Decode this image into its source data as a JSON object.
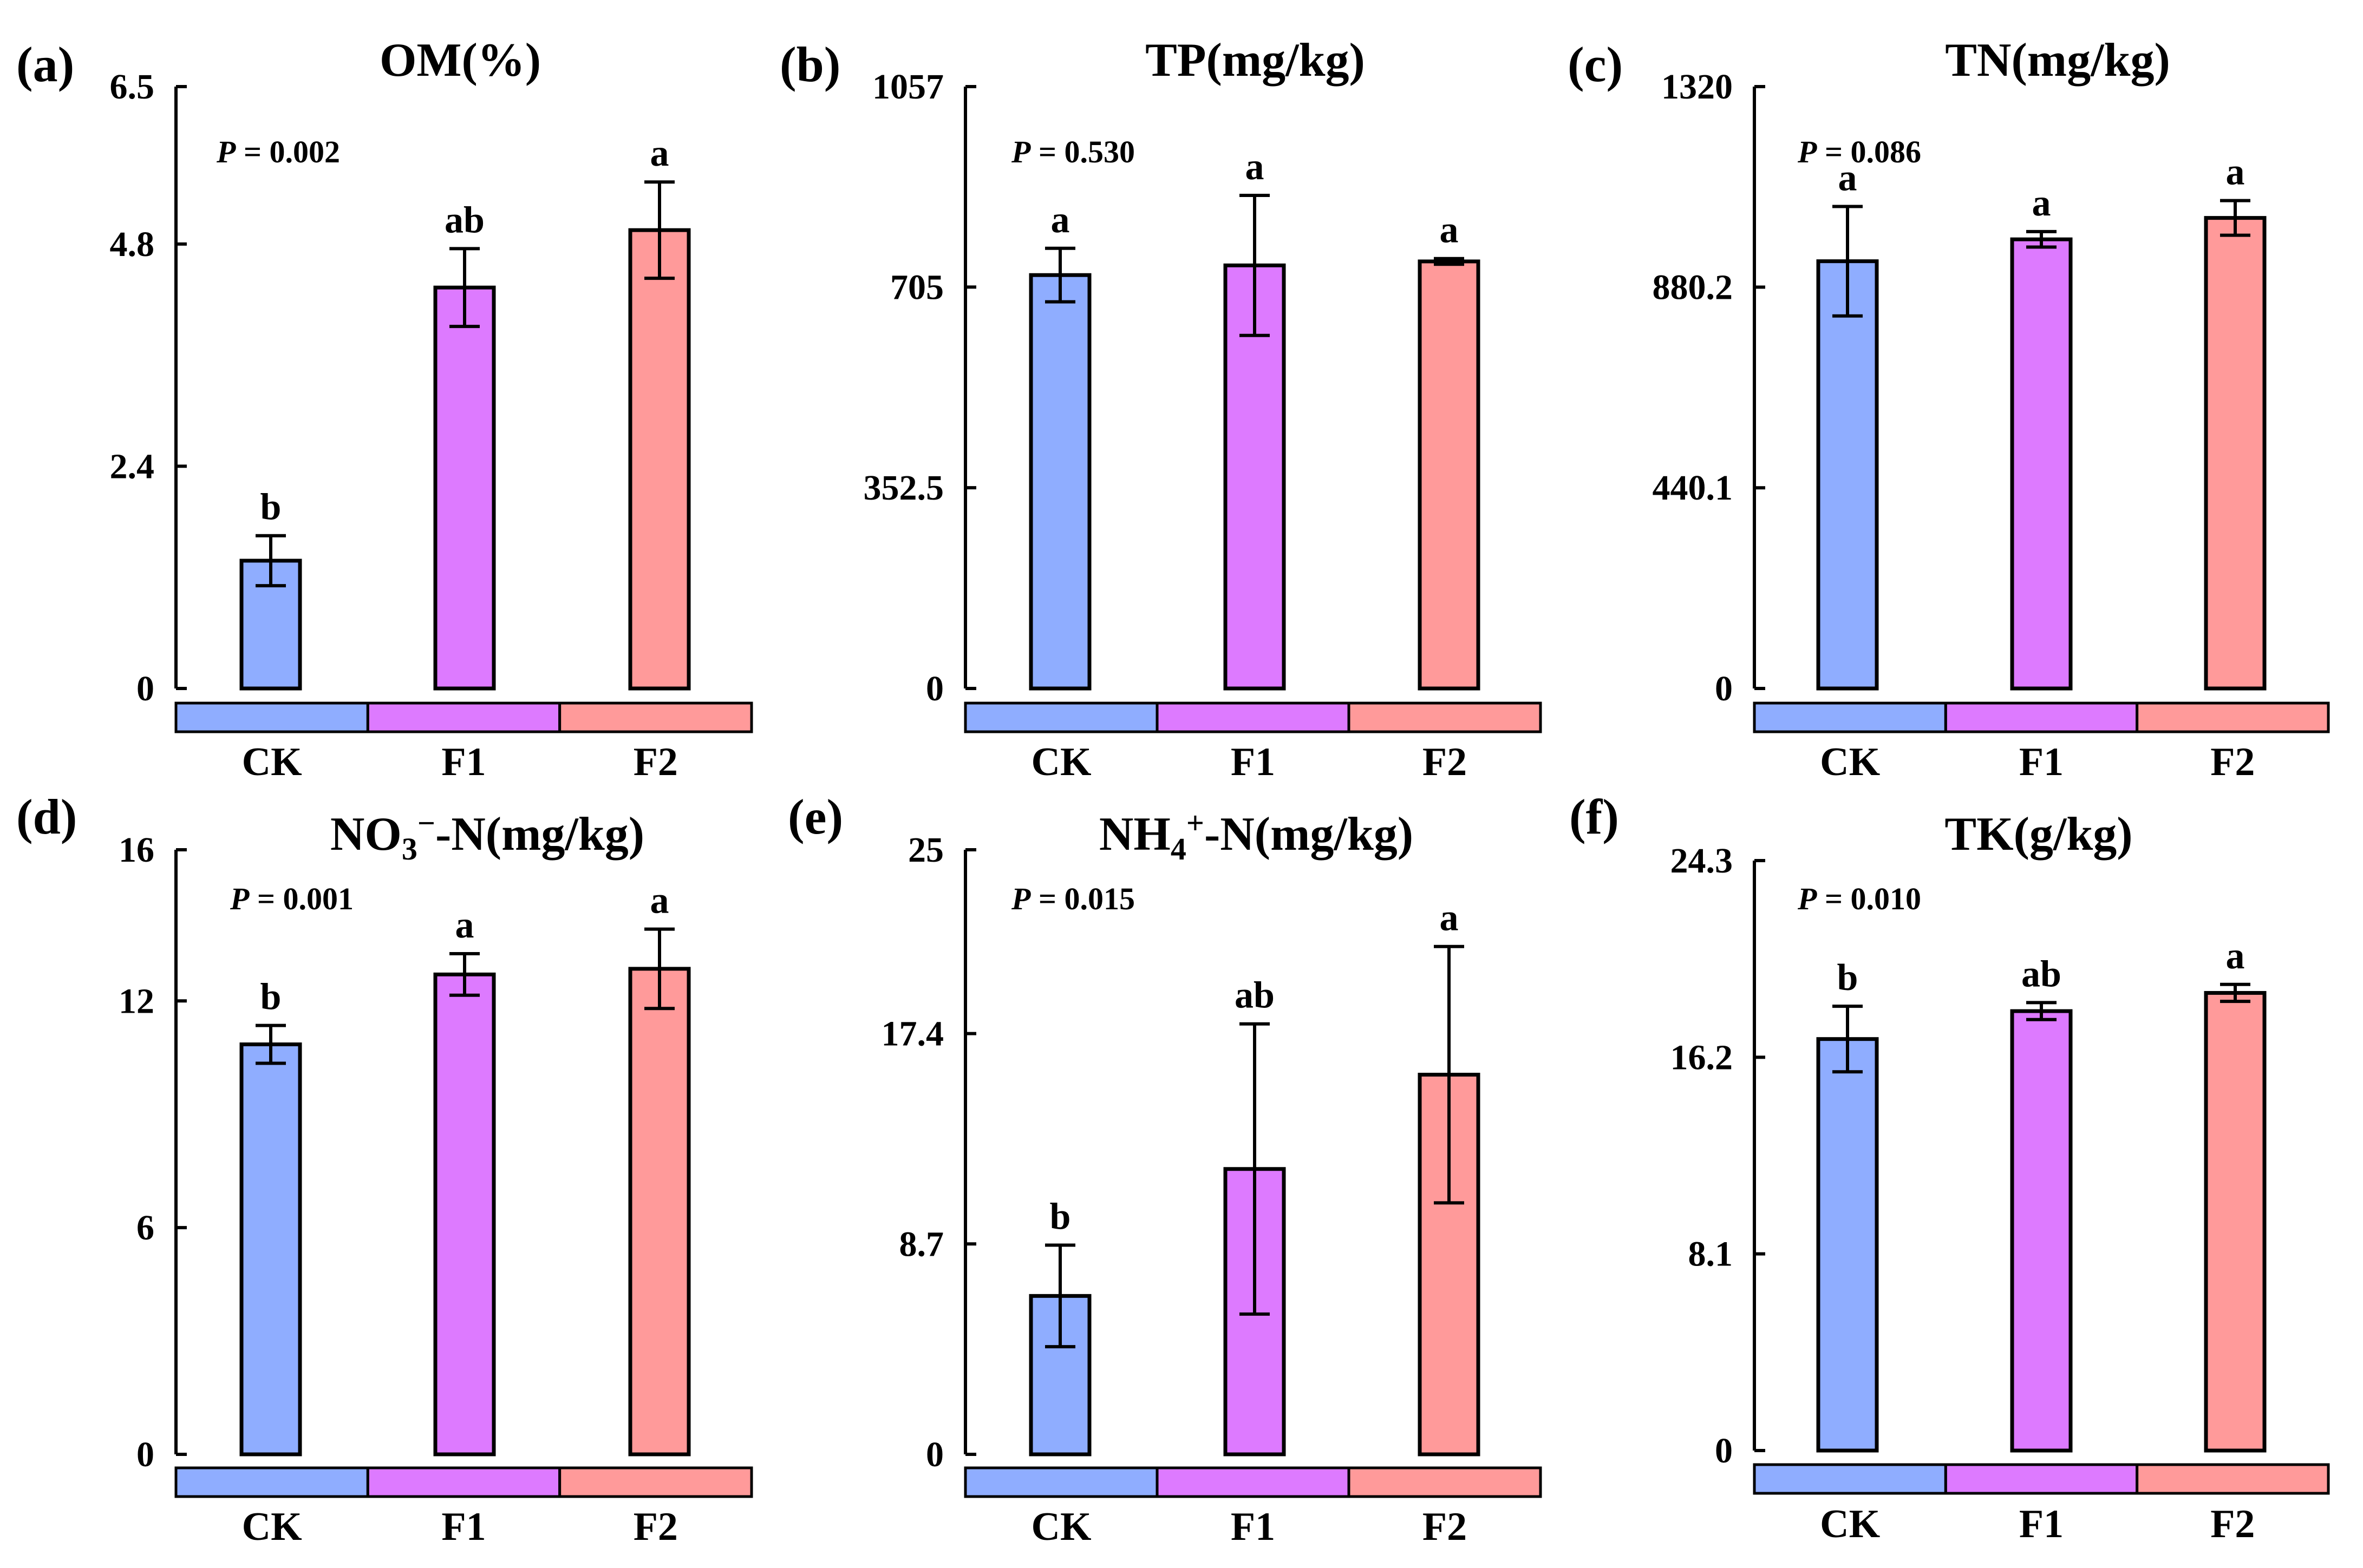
{
  "chart_data": [
    {
      "type": "bar",
      "panel": "(a)",
      "title": "OM(%)",
      "p_value": "0.002",
      "categories": [
        "CK",
        "F1",
        "F2"
      ],
      "values": [
        1.38,
        4.33,
        4.95
      ],
      "errors": [
        0.27,
        0.42,
        0.52
      ],
      "significance": [
        "b",
        "ab",
        "a"
      ],
      "ylim": [
        0,
        6.5
      ],
      "yticks": [
        "0",
        "2.4",
        "4.8",
        "6.5"
      ],
      "ytick_values": [
        0,
        2.4,
        4.8,
        6.5
      ],
      "colors": [
        "#8FADFF",
        "#DD7AFF",
        "#FF9A9A"
      ]
    },
    {
      "type": "bar",
      "panel": "(b)",
      "title": "TP(mg/kg)",
      "p_value": "0.530",
      "categories": [
        "CK",
        "F1",
        "F2"
      ],
      "values": [
        726,
        743,
        750
      ],
      "errors": [
        47,
        123,
        5
      ],
      "significance": [
        "a",
        "a",
        "a"
      ],
      "ylim": [
        0,
        1057
      ],
      "yticks": [
        "0",
        "352.5",
        "705",
        "1057"
      ],
      "ytick_values": [
        0,
        352.5,
        705,
        1057
      ],
      "colors": [
        "#8FADFF",
        "#DD7AFF",
        "#FF9A9A"
      ]
    },
    {
      "type": "bar",
      "panel": "(c)",
      "title": "TN(mg/kg)",
      "p_value": "0.086",
      "categories": [
        "CK",
        "F1",
        "F2"
      ],
      "values": [
        937,
        985,
        1032
      ],
      "errors": [
        120,
        17,
        38
      ],
      "significance": [
        "a",
        "a",
        "a"
      ],
      "ylim": [
        0,
        1320
      ],
      "yticks": [
        "0",
        "440.1",
        "880.2",
        "1320"
      ],
      "ytick_values": [
        0,
        440.1,
        880.2,
        1320
      ],
      "colors": [
        "#8FADFF",
        "#DD7AFF",
        "#FF9A9A"
      ]
    },
    {
      "type": "bar",
      "panel": "(d)",
      "title_parts": {
        "main": "NO",
        "sub": "3",
        "sup": "−",
        "rest": "-N(mg/kg)"
      },
      "p_value": "0.001",
      "categories": [
        "CK",
        "F1",
        "F2"
      ],
      "values": [
        10.85,
        12.7,
        12.85
      ],
      "errors": [
        0.5,
        0.55,
        1.05
      ],
      "significance": [
        "b",
        "a",
        "a"
      ],
      "ylim": [
        0,
        16
      ],
      "yticks": [
        "0",
        "6",
        "12",
        "16"
      ],
      "ytick_values": [
        0,
        6,
        12,
        16
      ],
      "colors": [
        "#8FADFF",
        "#DD7AFF",
        "#FF9A9A"
      ]
    },
    {
      "type": "bar",
      "panel": "(e)",
      "title_parts": {
        "main": "NH",
        "sub": "4",
        "sup": "+",
        "rest": "-N(mg/kg)"
      },
      "p_value": "0.015",
      "categories": [
        "CK",
        "F1",
        "F2"
      ],
      "values": [
        6.55,
        11.8,
        15.7
      ],
      "errors": [
        2.1,
        6.0,
        5.3
      ],
      "significance": [
        "b",
        "ab",
        "a"
      ],
      "ylim": [
        0,
        25
      ],
      "yticks": [
        "0",
        "8.7",
        "17.4",
        "25"
      ],
      "ytick_values": [
        0,
        8.7,
        17.4,
        25
      ],
      "colors": [
        "#8FADFF",
        "#DD7AFF",
        "#FF9A9A"
      ]
    },
    {
      "type": "bar",
      "panel": "(f)",
      "title": "TK(g/kg)",
      "p_value": "0.010",
      "categories": [
        "CK",
        "F1",
        "F2"
      ],
      "values": [
        16.95,
        18.1,
        18.85
      ],
      "errors": [
        1.35,
        0.35,
        0.35
      ],
      "significance": [
        "b",
        "ab",
        "a"
      ],
      "ylim": [
        0,
        24.3
      ],
      "yticks": [
        "0",
        "8.1",
        "16.2",
        "24.3"
      ],
      "ytick_values": [
        0,
        8.1,
        16.2,
        24.3
      ],
      "colors": [
        "#8FADFF",
        "#DD7AFF",
        "#FF9A9A"
      ]
    }
  ]
}
